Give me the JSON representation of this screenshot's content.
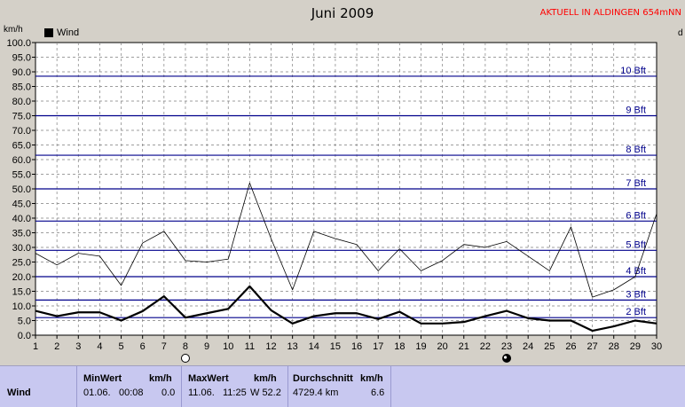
{
  "title": "Juni 2009",
  "station": "AKTUELL IN ALDINGEN 654mNN",
  "y_unit": "km/h",
  "right_unit": "d",
  "colors": {
    "plot_bg": "#ffffff",
    "grid": "#7f7f7f",
    "bft_line": "#00008b",
    "bft_label": "#00008b",
    "series": "#000000",
    "table_bg": "#c8c8f0"
  },
  "chart_data": {
    "type": "line",
    "title": "Juni 2009",
    "xlabel": "",
    "ylabel": "km/h",
    "xlim": [
      1,
      30
    ],
    "ylim": [
      0,
      100
    ],
    "grid": true,
    "legend_position": "top-left",
    "x": [
      1,
      2,
      3,
      4,
      5,
      6,
      7,
      8,
      9,
      10,
      11,
      12,
      13,
      14,
      15,
      16,
      17,
      18,
      19,
      20,
      21,
      22,
      23,
      24,
      25,
      26,
      27,
      28,
      29,
      30
    ],
    "x_ticks": [
      "1",
      "2",
      "3",
      "4",
      "5",
      "6",
      "7",
      "8",
      "9",
      "10",
      "11",
      "12",
      "13",
      "14",
      "15",
      "16",
      "17",
      "18",
      "19",
      "20",
      "21",
      "22",
      "23",
      "24",
      "25",
      "26",
      "27",
      "28",
      "29",
      "30"
    ],
    "y_ticks": [
      "0.0",
      "5.0",
      "10.0",
      "15.0",
      "20.0",
      "25.0",
      "30.0",
      "35.0",
      "40.0",
      "45.0",
      "50.0",
      "55.0",
      "60.0",
      "65.0",
      "70.0",
      "75.0",
      "80.0",
      "85.0",
      "90.0",
      "95.0",
      "100.0"
    ],
    "series": [
      {
        "name": "Wind",
        "values": [
          8.3,
          6.5,
          7.8,
          7.8,
          5.0,
          8.2,
          13.3,
          6.0,
          7.5,
          9.0,
          16.7,
          8.5,
          4.0,
          6.5,
          7.5,
          7.5,
          5.5,
          8.0,
          4.0,
          4.0,
          4.5,
          6.5,
          8.3,
          5.8,
          5.0,
          5.0,
          1.5,
          3.0,
          5.0,
          4.0
        ],
        "stroke_width": 2.2
      },
      {
        "name": "",
        "values": [
          28.0,
          24.0,
          28.0,
          27.0,
          17.0,
          31.5,
          35.5,
          25.5,
          25.0,
          26.0,
          52.0,
          33.0,
          15.5,
          35.5,
          33.0,
          31.0,
          22.0,
          29.5,
          22.0,
          25.5,
          31.0,
          30.0,
          32.0,
          27.0,
          22.0,
          37.0,
          13.0,
          15.5,
          20.0,
          41.5
        ],
        "stroke_width": 0.8
      }
    ],
    "beaufort": [
      {
        "label": "2 Bft",
        "value": 6
      },
      {
        "label": "3 Bft",
        "value": 12
      },
      {
        "label": "4 Bft",
        "value": 20
      },
      {
        "label": "5 Bft",
        "value": 29
      },
      {
        "label": "6 Bft",
        "value": 39
      },
      {
        "label": "7 Bft",
        "value": 50
      },
      {
        "label": "8 Bft",
        "value": 61.5
      },
      {
        "label": "9 Bft",
        "value": 75
      },
      {
        "label": "10 Bft",
        "value": 88.5
      }
    ],
    "moon_markers": [
      {
        "day": 8,
        "phase": "full"
      },
      {
        "day": 23,
        "phase": "new"
      }
    ]
  },
  "table": {
    "row_label": "Wind",
    "min": {
      "header": "MinWert",
      "unit": "km/h",
      "date": "01.06.",
      "time": "00:08",
      "value": "0.0"
    },
    "max": {
      "header": "MaxWert",
      "unit": "km/h",
      "date": "11.06.",
      "time": "11:25",
      "value": "W 52.2"
    },
    "avg": {
      "header": "Durchschnitt",
      "unit": "km/h",
      "distance": "4729.4 km",
      "value": "6.6"
    }
  }
}
